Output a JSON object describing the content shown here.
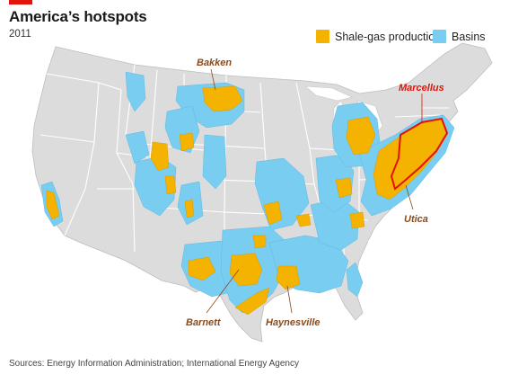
{
  "title": "America’s hotspots",
  "subtitle": "2011",
  "source": "Sources: Energy Information Administration; International Energy Agency",
  "legend": {
    "shale_label": "Shale-gas production",
    "basin_label": "Basins"
  },
  "colors": {
    "shale": "#f5b301",
    "basin": "#79cdf0",
    "land": "#dcdcdc",
    "border": "#ffffff",
    "accent": "#e3120b",
    "label_brown": "#8a4a1c"
  },
  "labels": {
    "bakken": "Bakken",
    "marcellus": "Marcellus",
    "utica": "Utica",
    "barnett": "Barnett",
    "haynesville": "Haynesville"
  }
}
